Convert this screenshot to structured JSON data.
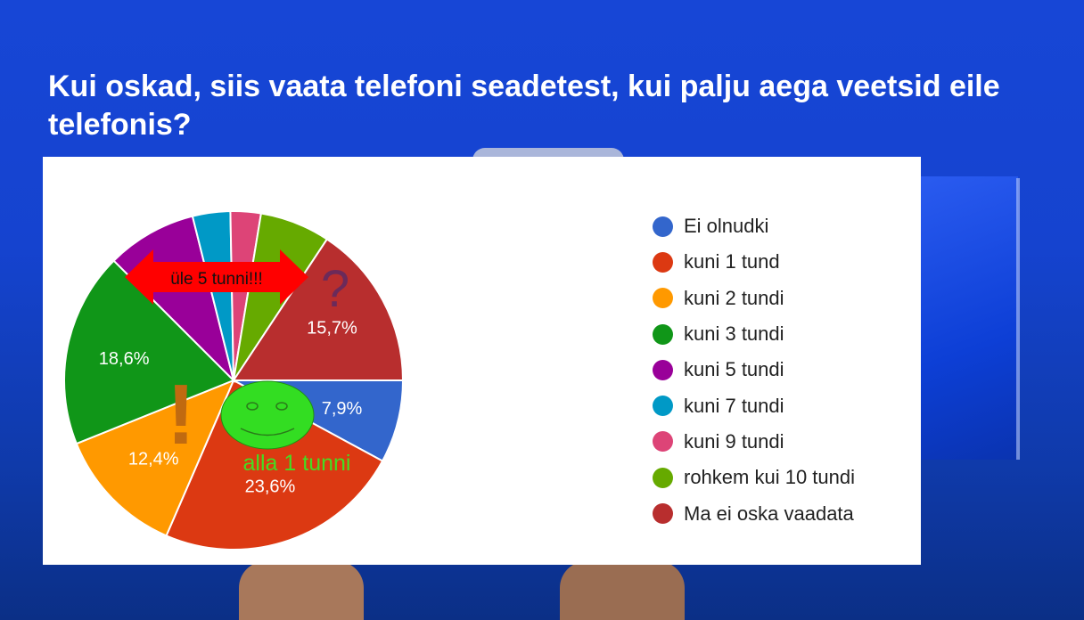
{
  "slide": {
    "title": "Kui oskad, siis vaata telefoni seadetest, kui palju aega veetsid eile telefonis?"
  },
  "chart_data": {
    "type": "pie",
    "title": "",
    "start_angle_deg": 90,
    "direction": "clockwise",
    "slices": [
      {
        "label": "Ei olnudki",
        "value": 7.9,
        "color": "#3366cc",
        "display": "7,9%"
      },
      {
        "label": "kuni 1 tund",
        "value": 23.6,
        "color": "#dc3912",
        "display": "23,6%"
      },
      {
        "label": "kuni 2 tundi",
        "value": 12.4,
        "color": "#ff9900",
        "display": "12,4%"
      },
      {
        "label": "kuni 3 tundi",
        "value": 18.6,
        "color": "#109618",
        "display": "18,6%"
      },
      {
        "label": "kuni 5 tundi",
        "value": 8.6,
        "color": "#990099",
        "display": ""
      },
      {
        "label": "kuni 7 tundi",
        "value": 3.6,
        "color": "#0099c6",
        "display": ""
      },
      {
        "label": "kuni 9 tundi",
        "value": 2.9,
        "color": "#dd4477",
        "display": ""
      },
      {
        "label": "rohkem kui 10 tundi",
        "value": 6.7,
        "color": "#66aa00",
        "display": ""
      },
      {
        "label": "Ma ei oska vaadata",
        "value": 15.7,
        "color": "#b82e2e",
        "display": "15,7%"
      }
    ],
    "legend_position": "right"
  },
  "annotations": {
    "arrow_label": "üle 5 tunni!!!",
    "smiley_label": "alla 1 tunni",
    "question_mark": "?",
    "exclamation_mark": "!",
    "arrow_color": "#ff0000",
    "smiley_color": "#33dd22",
    "smiley_text_color": "#44dd22",
    "question_color": "#6b2a5a",
    "exclamation_color": "#c06a10"
  }
}
